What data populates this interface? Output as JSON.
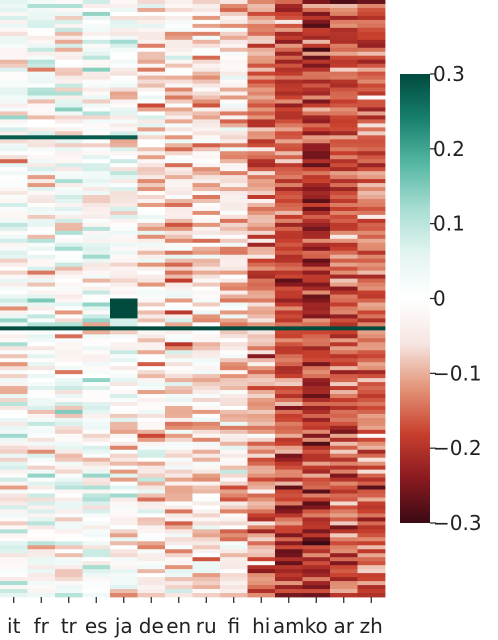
{
  "chart_data": {
    "type": "heatmap",
    "title": "",
    "xlabel": "",
    "ylabel": "",
    "categories": [
      "it",
      "fr",
      "tr",
      "es",
      "ja",
      "de",
      "en",
      "ru",
      "fi",
      "hi",
      "am",
      "ko",
      "ar",
      "zh"
    ],
    "column_mean_values": [
      0.0,
      0.01,
      0.0,
      0.01,
      -0.02,
      -0.04,
      -0.05,
      -0.05,
      -0.06,
      -0.12,
      -0.17,
      -0.19,
      -0.17,
      -0.15
    ],
    "row_count_estimate": 150,
    "colorbar": {
      "min": -0.3,
      "max": 0.3,
      "ticks": [
        0.3,
        0.2,
        0.1,
        0,
        -0.1,
        -0.2,
        -0.3
      ],
      "tick_labels": [
        "0.3",
        "0.2",
        "0.1",
        "0",
        "−0.1",
        "−0.2",
        "−0.3"
      ],
      "colormap": [
        "#3b0a14",
        "#8a1a20",
        "#c8402e",
        "#e39478",
        "#f6e6e2",
        "#ffffff",
        "#e3f4f1",
        "#a7ddd2",
        "#56b8a3",
        "#17806d",
        "#004a3e"
      ],
      "position": "right"
    },
    "grid": false
  }
}
